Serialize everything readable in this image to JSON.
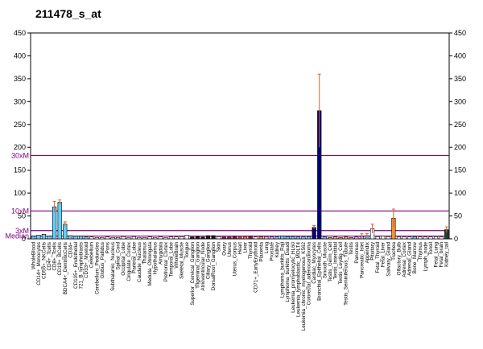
{
  "chart_data": {
    "type": "bar",
    "title": "211478_s_at",
    "ylim": [
      0,
      450
    ],
    "yticks": [
      0,
      50,
      100,
      150,
      200,
      250,
      300,
      350,
      400,
      450
    ],
    "reference_lines": [
      {
        "label": "30xM",
        "value": 182,
        "color": "#800080"
      },
      {
        "label": "10xM",
        "value": 61,
        "color": "#800080"
      },
      {
        "label": "3xM",
        "value": 18,
        "color": "#800080"
      },
      {
        "label": "Median",
        "value": 6,
        "color": "#800080"
      }
    ],
    "categories": [
      "WholeBlood",
      "CD14+_Monocytes",
      "CD56+_NKCells",
      "CD4+_Tcells",
      "CD8+_Tcells",
      "CD19+_BCells",
      "BDCA4+_DentriticCells",
      "CD34+",
      "CD105+_Endothelial",
      "721_B_lymphoblasts",
      "CD33+_Myeloid",
      "Cerebellum",
      "Cerebellum_Peduncles",
      "Globus_Pallidus",
      "Pons",
      "Subthalamic_Nucleus",
      "Spinal_Cord",
      "Occipital_Lobe",
      "Cingulate_Cortex",
      "Parietal_Lobe",
      "Caudate_Nucleus",
      "Thalamus",
      "Medulla_Oblongata",
      "Hypothalamus",
      "Amygdala",
      "Prefrontal_Cortex",
      "Temporal_Lobe",
      "WholeBrain",
      "Skeletal_Muscle",
      "Tongue",
      "Superior_Cervical_Ganglion",
      "Trigeminal_Ganglion",
      "Atrioventricular_Node",
      "Ciliary_Ganglion",
      "DorsalRoot_Ganglion",
      "Skin",
      "Ovary",
      "Uterus",
      "Uterus_Corpus",
      "Heart",
      "Liver",
      "Thyroid",
      "CD71+_EarlyErythroid",
      "Placenta",
      "Lung",
      "Prostate",
      "Kidney",
      "Lymphoma_burkitts_Raji",
      "Lymphoma_burkitts_Daudi",
      "Leukemia_promyelocytic_HL60",
      "Leukemia_lymphoblastic_MOLT4",
      "Leukemia_chronic_myelogenous_K562",
      "Colorectal_adenocarcinoma",
      "Cardiac_Myocytes",
      "Bronchial_Epithelial_Cells",
      "Smooth_Muscle",
      "Testis_Germ_Cell",
      "Testis_Interstitial",
      "Testis_Leydig_Cell",
      "Testis_Seminiferous_Tubule",
      "Testis",
      "Pancreas",
      "Pancreatic_Islet",
      "Appendix",
      "Pituitary",
      "Fetal_Thyroid",
      "Fetal_Liver",
      "Salivary_Gland",
      "Trachea",
      "Olfactory_Bulb",
      "Adrenal_Cortex",
      "Adrenal_Gland",
      "Bone_Marrow",
      "Thymus",
      "Lymph_node",
      "Tonsil",
      "Fetal_Lung",
      "Fetal_brain",
      "Kidney_tail"
    ],
    "values": [
      6,
      8,
      10,
      6,
      70,
      80,
      32,
      7,
      6,
      6,
      4,
      4,
      3,
      3,
      4,
      3,
      3,
      5,
      3,
      5,
      3,
      3,
      4,
      3,
      4,
      3,
      4,
      4,
      5,
      8,
      4,
      5,
      4,
      7,
      7,
      5,
      4,
      4,
      5,
      4,
      4,
      6,
      4,
      5,
      5,
      4,
      4,
      6,
      5,
      5,
      4,
      4,
      5,
      25,
      280,
      4,
      3,
      4,
      3,
      4,
      3,
      4,
      6,
      7,
      22,
      5,
      6,
      5,
      45,
      4,
      4,
      4,
      5,
      4,
      4,
      4,
      5,
      4,
      20
    ],
    "errors": [
      0,
      0,
      0,
      0,
      12,
      5,
      5,
      0,
      0,
      0,
      0,
      0,
      0,
      0,
      0,
      0,
      0,
      0,
      0,
      0,
      0,
      0,
      0,
      0,
      0,
      0,
      0,
      0,
      0,
      0,
      0,
      0,
      0,
      0,
      0,
      0,
      0,
      0,
      0,
      0,
      0,
      0,
      0,
      0,
      0,
      0,
      0,
      0,
      0,
      0,
      0,
      0,
      0,
      4,
      80,
      0,
      0,
      0,
      0,
      0,
      0,
      0,
      5,
      5,
      10,
      0,
      0,
      0,
      20,
      0,
      0,
      0,
      0,
      0,
      0,
      0,
      0,
      0,
      6
    ],
    "colors": [
      "#5fd0ff",
      "#5fd0ff",
      "#5fd0ff",
      "#5fd0ff",
      "#5fd0ff",
      "#5fd0ff",
      "#5fd0ff",
      "#5fd0ff",
      "#5fd0ff",
      "#5fd0ff",
      "#5fd0ff",
      "#ffffff",
      "#ffffff",
      "#ffffff",
      "#ffffff",
      "#ffffff",
      "#ffffff",
      "#ffffff",
      "#ffffff",
      "#ffffff",
      "#ffffff",
      "#ffffff",
      "#ffffff",
      "#ffffff",
      "#ffffff",
      "#ffffff",
      "#ffffff",
      "#ffffff",
      "#ffffff",
      "#ffffff",
      "#1a1a1a",
      "#1a1a1a",
      "#1a1a1a",
      "#1a1a1a",
      "#1a1a1a",
      "#ffffff",
      "#8b1a3a",
      "#8b1a3a",
      "#8b1a3a",
      "#ff3030",
      "#ff8040",
      "#8b1a3a",
      "#ffffff",
      "#ff8c40",
      "#e0b0ff",
      "#e0b0ff",
      "#5fd0ff",
      "#5fd0ff",
      "#5fd0ff",
      "#5fd0ff",
      "#5fd0ff",
      "#5fd0ff",
      "#5fd0ff",
      "#000080",
      "#000080",
      "#5fd0ff",
      "#ffb060",
      "#ffb060",
      "#ffb060",
      "#ffb060",
      "#ffb060",
      "#e0b0ff",
      "#e0b0ff",
      "#5fd0ff",
      "#ffffff",
      "#ffffff",
      "#ffffff",
      "#ffffff",
      "#ff9020",
      "#ffffff",
      "#ffffff",
      "#ffffff",
      "#5fd0ff",
      "#ffffff",
      "#ffffff",
      "#ffffff",
      "#ffffff",
      "#ffffff",
      "#204030"
    ]
  }
}
